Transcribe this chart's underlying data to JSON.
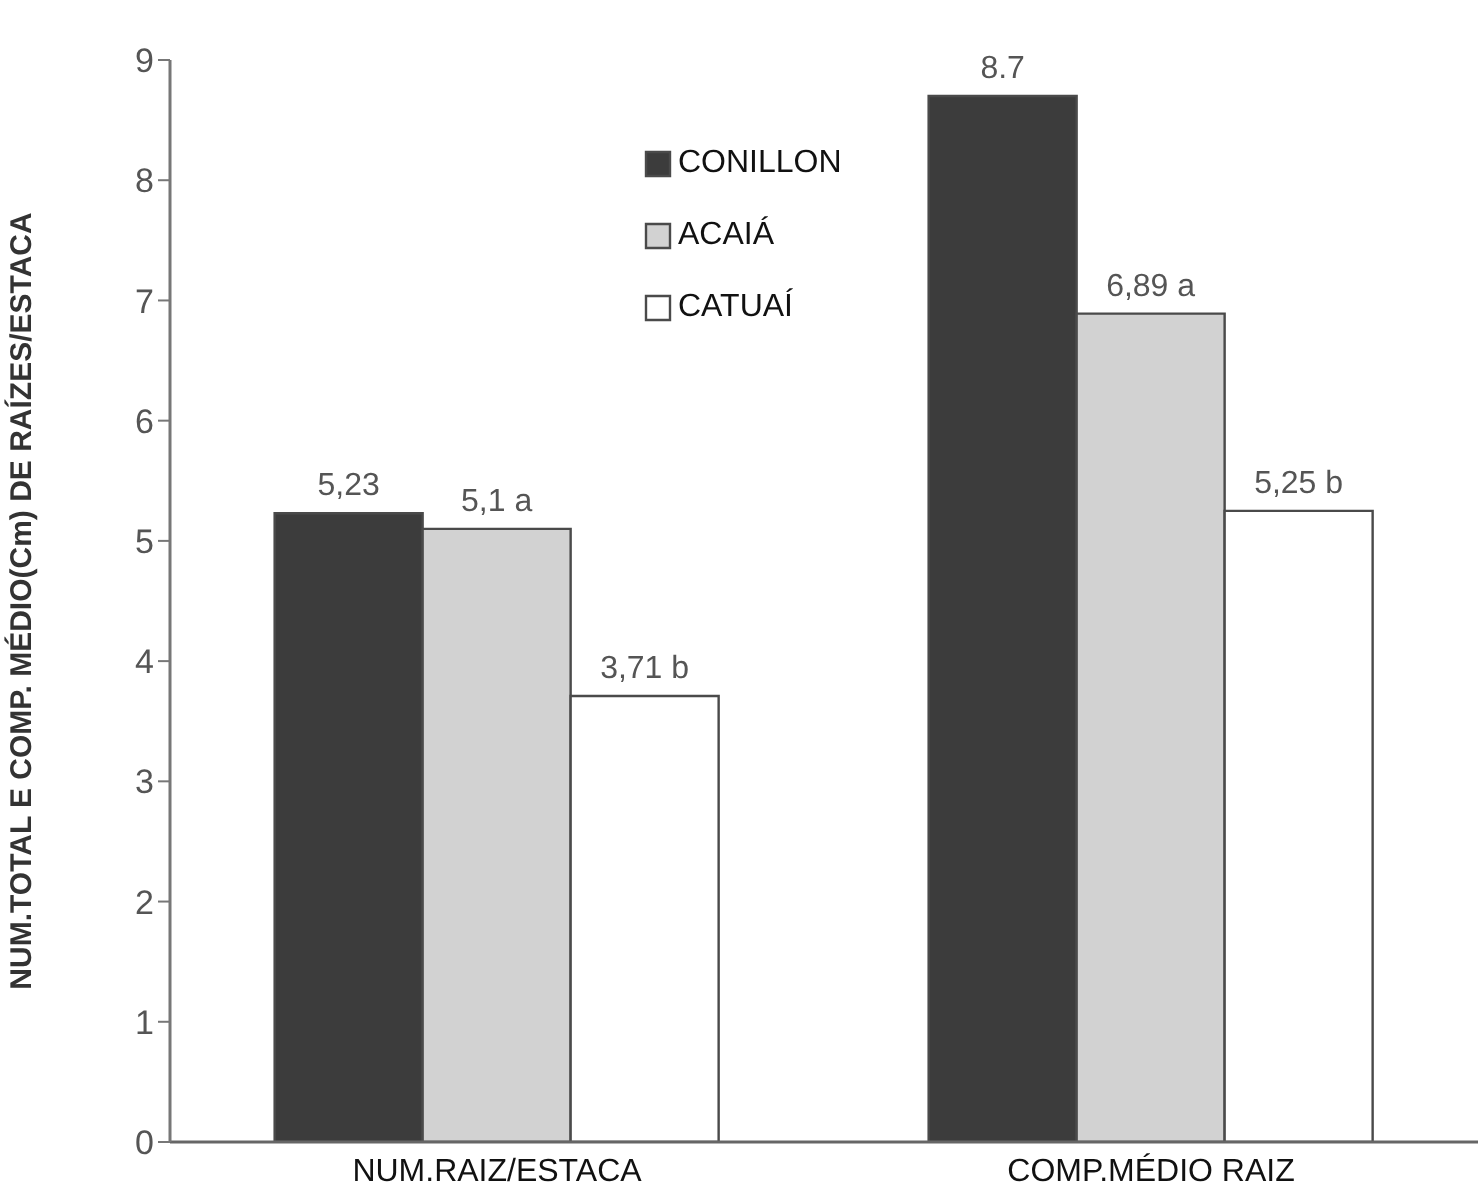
{
  "chart_data": {
    "type": "bar",
    "ylabel": "NUM.TOTAL E COMP. MÉDIO(Cm) DE RAÍZES/ESTACA",
    "categories": [
      "NUM.RAIZ/ESTACA",
      "COMP.MÉDIO RAIZ"
    ],
    "series": [
      {
        "name": "CONILLON",
        "color": "#3c3c3c",
        "values": [
          5.23,
          8.7
        ],
        "value_labels": [
          "5,23",
          "8.7"
        ]
      },
      {
        "name": "ACAIÁ",
        "color": "#d2d2d2",
        "values": [
          5.1,
          6.89
        ],
        "value_labels": [
          "5,1 a",
          "6,89 a"
        ]
      },
      {
        "name": "CATUAÍ",
        "color": "#ffffff",
        "values": [
          3.71,
          5.25
        ],
        "value_labels": [
          "3,71 b",
          "5,25 b"
        ]
      }
    ],
    "ylim": [
      0,
      9
    ],
    "yticks": [
      0,
      1,
      2,
      3,
      4,
      5,
      6,
      7,
      8,
      9
    ],
    "grid": false,
    "legend": "top"
  }
}
